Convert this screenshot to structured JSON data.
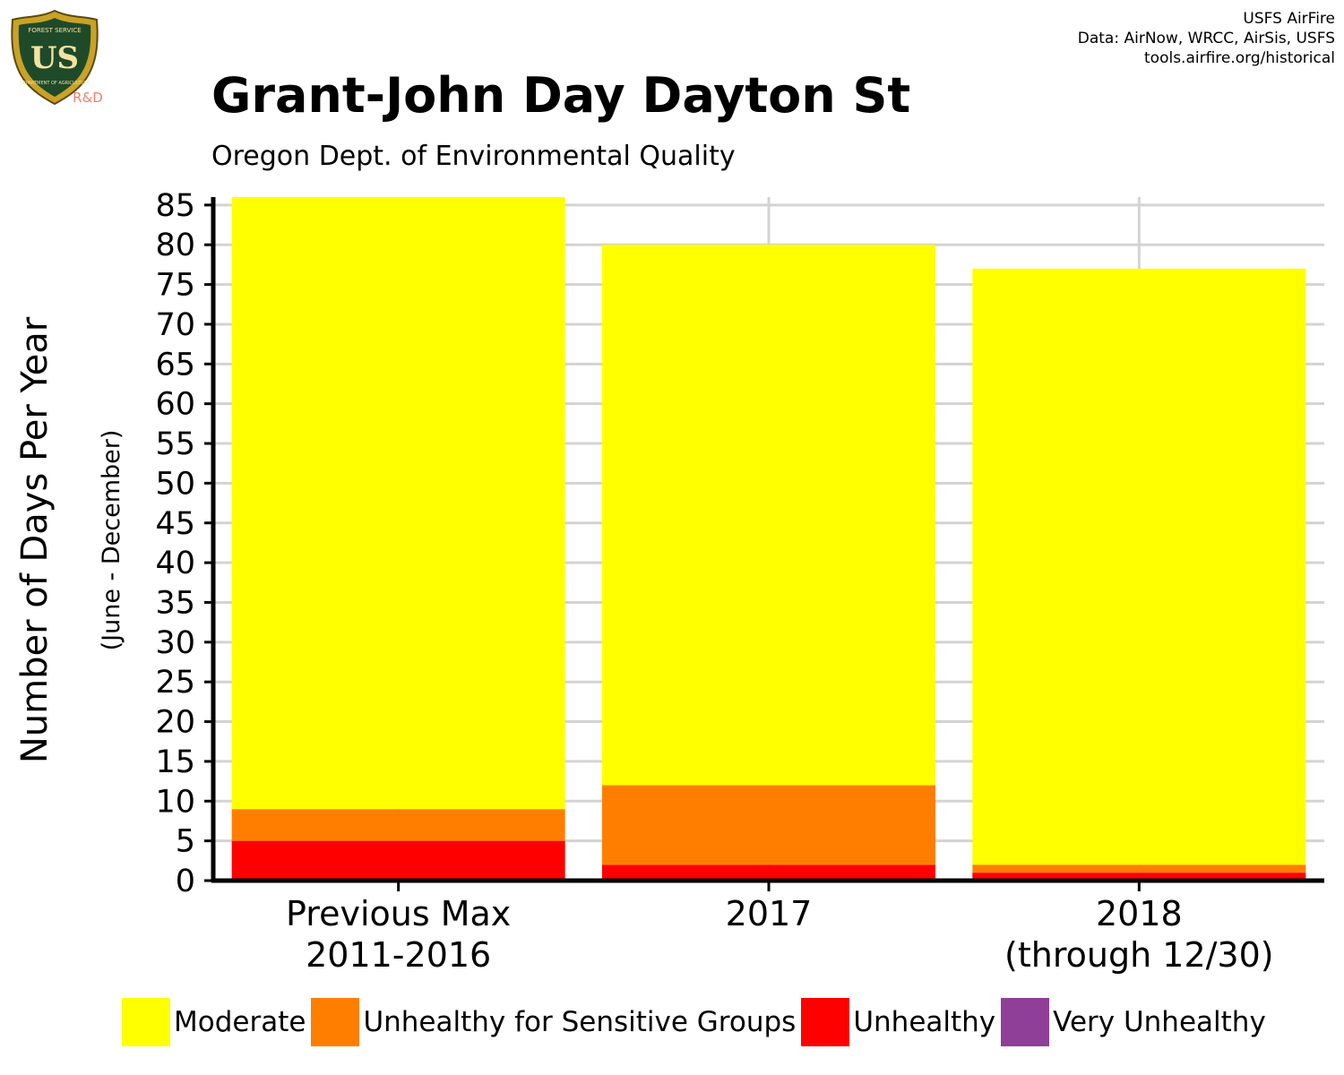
{
  "header": {
    "title": "Grant-John Day Dayton St",
    "subtitle": "Oregon Dept. of Environmental Quality",
    "credits": [
      "USFS AirFire",
      "Data: AirNow, WRCC, AirSis, USFS",
      "tools.airfire.org/historical"
    ]
  },
  "logo": {
    "icon": "usfs-shield-icon",
    "text_main": "US",
    "text_top": "FOREST SERVICE",
    "text_bottom": "DEPARTMENT OF AGRICULTURE",
    "badge": "R&D"
  },
  "chart_data": {
    "type": "bar",
    "stacked": true,
    "ylabel": "Number of Days Per Year",
    "ylabel_sub": "(June - December)",
    "xlabel": "",
    "ylim": [
      0,
      86
    ],
    "yticks": [
      0,
      5,
      10,
      15,
      20,
      25,
      30,
      35,
      40,
      45,
      50,
      55,
      60,
      65,
      70,
      75,
      80,
      85
    ],
    "grid": true,
    "legend_position": "bottom",
    "categories": [
      [
        "Previous Max",
        "2011-2016"
      ],
      [
        "2017"
      ],
      [
        "2018",
        "(through 12/30)"
      ]
    ],
    "series": [
      {
        "name": "Moderate",
        "color": "#FFFF00",
        "values": [
          77,
          68,
          75
        ]
      },
      {
        "name": "Unhealthy for Sensitive Groups",
        "color": "#FF7E00",
        "values": [
          4,
          10,
          1
        ]
      },
      {
        "name": "Unhealthy",
        "color": "#FF0000",
        "values": [
          5,
          2,
          1
        ]
      },
      {
        "name": "Very Unhealthy",
        "color": "#8F3F97",
        "values": [
          0,
          0,
          0
        ]
      }
    ]
  }
}
